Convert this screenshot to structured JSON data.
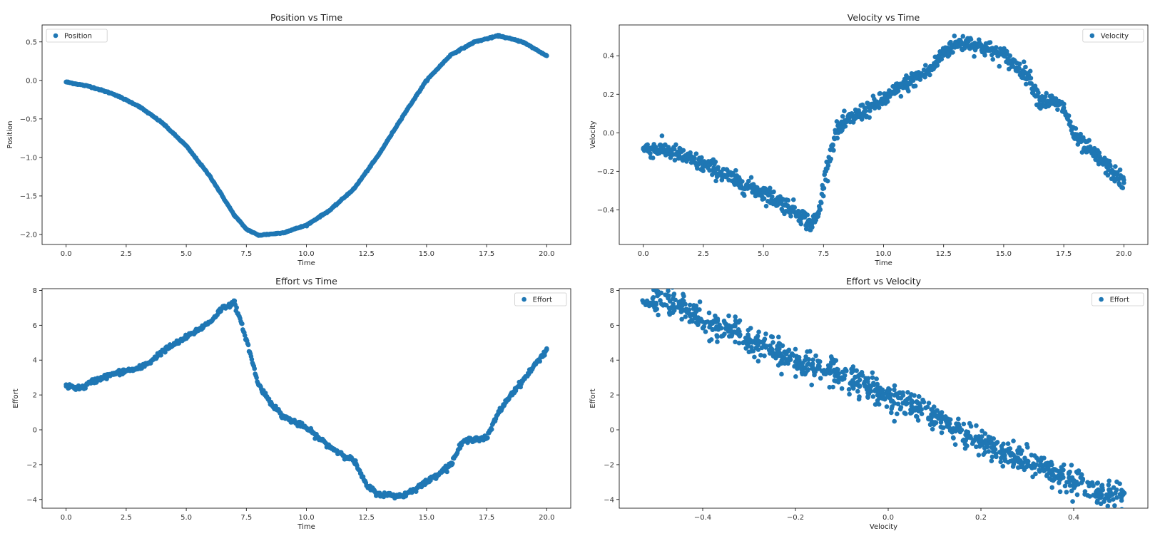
{
  "colors": {
    "series": "#1f77b4",
    "axis": "#000000",
    "background": "#ffffff"
  },
  "chart_data": [
    {
      "type": "scatter",
      "title": "Position vs Time",
      "xlabel": "Time",
      "ylabel": "Position",
      "xlim": [
        -1.0,
        21.0
      ],
      "ylim": [
        -2.13,
        0.72
      ],
      "xticks": [
        0,
        2.5,
        5,
        7.5,
        10,
        12.5,
        15,
        17.5,
        20
      ],
      "xtick_labels": [
        "0.0",
        "2.5",
        "5.0",
        "7.5",
        "10.0",
        "12.5",
        "15.0",
        "17.5",
        "20.0"
      ],
      "yticks": [
        -2,
        -1.5,
        -1,
        -0.5,
        0,
        0.5
      ],
      "ytick_labels": [
        "−2.0",
        "−1.5",
        "−1.0",
        "−0.5",
        "0.0",
        "0.5"
      ],
      "legend": {
        "label": "Position",
        "loc": "upper left"
      },
      "series": [
        {
          "name": "Position",
          "x": [
            0,
            1,
            2,
            3,
            4,
            5,
            6,
            7,
            7.5,
            8,
            9,
            10,
            11,
            12,
            13,
            14,
            15,
            16,
            17,
            18,
            19,
            20
          ],
          "y": [
            -0.02,
            -0.08,
            -0.18,
            -0.33,
            -0.55,
            -0.85,
            -1.25,
            -1.75,
            -1.93,
            -2.01,
            -1.98,
            -1.88,
            -1.68,
            -1.4,
            -0.97,
            -0.47,
            0.0,
            0.33,
            0.5,
            0.58,
            0.5,
            0.32
          ]
        }
      ]
    },
    {
      "type": "scatter",
      "title": "Velocity vs Time",
      "xlabel": "Time",
      "ylabel": "Velocity",
      "xlim": [
        -1.0,
        21.0
      ],
      "ylim": [
        -0.58,
        0.56
      ],
      "xticks": [
        0,
        2.5,
        5,
        7.5,
        10,
        12.5,
        15,
        17.5,
        20
      ],
      "xtick_labels": [
        "0.0",
        "2.5",
        "5.0",
        "7.5",
        "10.0",
        "12.5",
        "15.0",
        "17.5",
        "20.0"
      ],
      "yticks": [
        -0.4,
        -0.2,
        0,
        0.2,
        0.4
      ],
      "ytick_labels": [
        "−0.4",
        "−0.2",
        "0.0",
        "0.2",
        "0.4"
      ],
      "legend": {
        "label": "Velocity",
        "loc": "upper right"
      },
      "series": [
        {
          "name": "Velocity",
          "x": [
            0,
            1,
            2,
            3,
            4,
            5,
            6,
            6.5,
            7,
            7.3,
            7.6,
            8,
            8.5,
            9,
            10,
            11,
            12,
            12.5,
            13,
            13.5,
            14,
            15,
            16,
            16.5,
            17,
            17.5,
            18,
            19,
            20
          ],
          "y": [
            -0.08,
            -0.09,
            -0.14,
            -0.19,
            -0.26,
            -0.31,
            -0.38,
            -0.42,
            -0.48,
            -0.42,
            -0.2,
            0.0,
            0.06,
            0.1,
            0.17,
            0.26,
            0.33,
            0.42,
            0.46,
            0.47,
            0.45,
            0.4,
            0.3,
            0.17,
            0.16,
            0.13,
            -0.03,
            -0.14,
            -0.26
          ]
        }
      ]
    },
    {
      "type": "scatter",
      "title": "Effort vs Time",
      "xlabel": "Time",
      "ylabel": "Effort",
      "xlim": [
        -1.0,
        21.0
      ],
      "ylim": [
        -4.5,
        8.1
      ],
      "xticks": [
        0,
        2.5,
        5,
        7.5,
        10,
        12.5,
        15,
        17.5,
        20
      ],
      "xtick_labels": [
        "0.0",
        "2.5",
        "5.0",
        "7.5",
        "10.0",
        "12.5",
        "15.0",
        "17.5",
        "20.0"
      ],
      "yticks": [
        -4,
        -2,
        0,
        2,
        4,
        6,
        8
      ],
      "ytick_labels": [
        "−4",
        "−2",
        "0",
        "2",
        "4",
        "6",
        "8"
      ],
      "legend": {
        "label": "Effort",
        "loc": "upper right"
      },
      "series": [
        {
          "name": "Effort",
          "x": [
            0,
            0.7,
            1,
            1.5,
            2,
            2.5,
            3,
            3.5,
            4,
            5,
            6,
            6.5,
            7,
            7.5,
            8,
            8.5,
            9,
            10,
            11,
            12,
            12.5,
            13,
            14,
            15,
            16,
            16.5,
            17,
            17.5,
            18,
            18.5,
            19,
            20
          ],
          "y": [
            2.5,
            2.4,
            2.7,
            3.0,
            3.2,
            3.4,
            3.5,
            3.9,
            4.5,
            5.3,
            6.2,
            7.0,
            7.3,
            5.2,
            2.6,
            1.6,
            0.8,
            0.1,
            -1.0,
            -1.8,
            -3.2,
            -3.7,
            -3.8,
            -3.0,
            -2.0,
            -0.7,
            -0.5,
            -0.5,
            1.0,
            2.0,
            2.8,
            4.6
          ]
        }
      ]
    },
    {
      "type": "scatter",
      "title": "Effort vs Velocity",
      "xlabel": "Velocity",
      "ylabel": "Effort",
      "xlim": [
        -0.58,
        0.56
      ],
      "ylim": [
        -4.5,
        8.1
      ],
      "xticks": [
        -0.4,
        -0.2,
        0,
        0.2,
        0.4
      ],
      "xtick_labels": [
        "−0.4",
        "−0.2",
        "0.0",
        "0.2",
        "0.4"
      ],
      "yticks": [
        -4,
        -2,
        0,
        2,
        4,
        6,
        8
      ],
      "ytick_labels": [
        "−4",
        "−2",
        "0",
        "2",
        "4",
        "6",
        "8"
      ],
      "legend": {
        "label": "Effort",
        "loc": "upper right"
      },
      "series": [
        {
          "name": "Effort",
          "x": [
            -0.52,
            -0.45,
            -0.4,
            -0.35,
            -0.3,
            -0.25,
            -0.2,
            -0.15,
            -0.1,
            -0.05,
            0.0,
            0.05,
            0.1,
            0.15,
            0.2,
            0.25,
            0.3,
            0.35,
            0.4,
            0.45,
            0.5
          ],
          "y": [
            7.4,
            7.2,
            6.2,
            5.8,
            5.1,
            4.6,
            3.9,
            3.5,
            3.0,
            2.5,
            1.9,
            1.5,
            0.8,
            0.0,
            -0.6,
            -1.3,
            -1.8,
            -2.4,
            -3.0,
            -3.5,
            -3.7
          ]
        }
      ]
    }
  ]
}
